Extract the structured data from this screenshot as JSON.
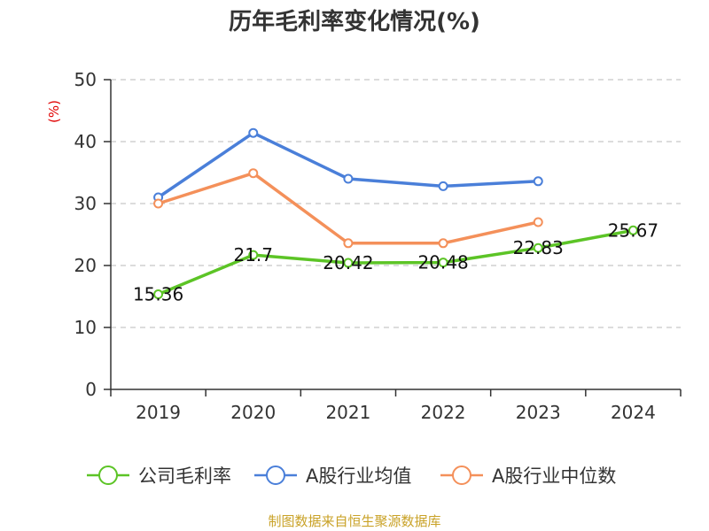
{
  "chart_data": {
    "type": "line",
    "title": "历年毛利率变化情况(%)",
    "ylabel": "(%)",
    "categories": [
      "2019",
      "2020",
      "2021",
      "2022",
      "2023",
      "2024"
    ],
    "ylim": [
      0,
      50
    ],
    "yticks": [
      0,
      10,
      20,
      30,
      40,
      50
    ],
    "grid": true,
    "legend_position": "bottom",
    "series": [
      {
        "name": "公司毛利率",
        "color": "#5cc426",
        "values": [
          15.36,
          21.7,
          20.42,
          20.48,
          22.83,
          25.67
        ],
        "data_labels": [
          "15.36",
          "21.7",
          "20.42",
          "20.48",
          "22.83",
          "25.67"
        ]
      },
      {
        "name": "A股行业均值",
        "color": "#4a7fd9",
        "values": [
          31.0,
          41.4,
          34.0,
          32.8,
          33.6,
          null
        ]
      },
      {
        "name": "A股行业中位数",
        "color": "#f4905a",
        "values": [
          30.0,
          34.9,
          23.6,
          23.6,
          27.0,
          null
        ]
      }
    ]
  },
  "source": "制图数据来自恒生聚源数据库"
}
